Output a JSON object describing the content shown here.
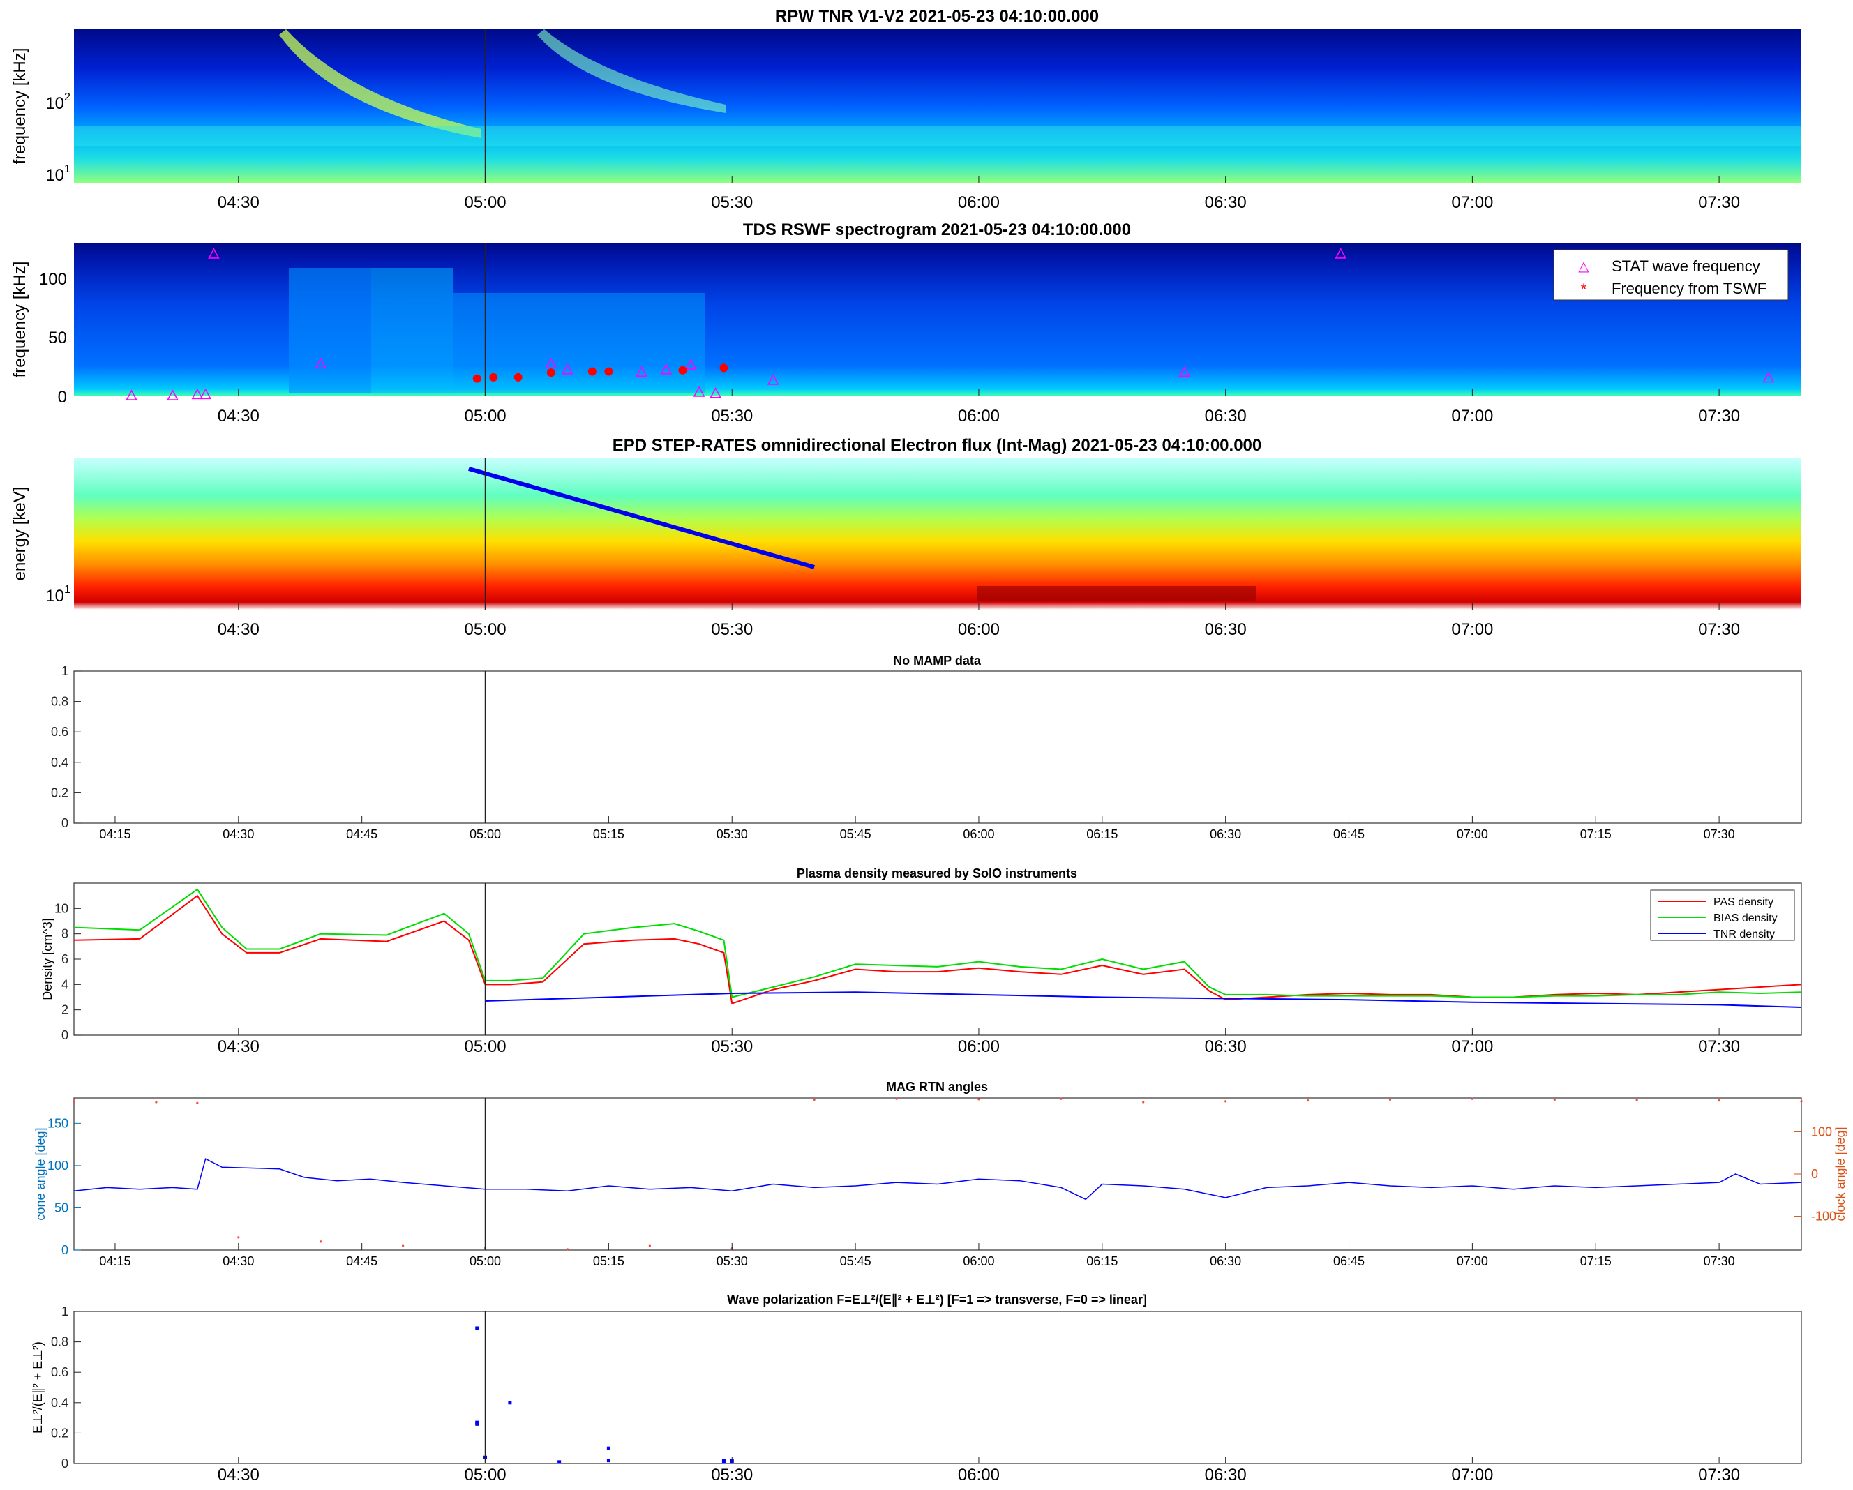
{
  "time_ticks_30": [
    "04:30",
    "05:00",
    "05:30",
    "06:00",
    "06:30",
    "07:00",
    "07:30"
  ],
  "time_ticks_15": [
    "04:15",
    "04:30",
    "04:45",
    "05:00",
    "05:15",
    "05:30",
    "05:45",
    "06:00",
    "06:15",
    "06:30",
    "06:45",
    "07:00",
    "07:15",
    "07:30"
  ],
  "event_time": "05:00",
  "chart_data": [
    {
      "type": "heatmap",
      "title": "RPW TNR V1-V2 2021-05-23 04:10:00.000",
      "ylabel": "frequency [kHz]",
      "yscale": "log",
      "yticks": [
        "10^1",
        "10^2"
      ],
      "colormap": "jet",
      "features": [
        "type III radio burst starting ~04:37",
        "type III radio burst starting ~04:52",
        "enhanced emission ~05:00"
      ]
    },
    {
      "type": "heatmap",
      "title": "TDS RSWF spectrogram 2021-05-23 04:10:00.000",
      "ylabel": "frequency [kHz]",
      "ylim": [
        0,
        130
      ],
      "yticks": [
        "0",
        "50",
        "100"
      ],
      "colormap": "jet",
      "legend": [
        "STAT wave frequency",
        "Frequency from TSWF"
      ],
      "legend_position": "top-right",
      "stat_wave_frequency": [
        {
          "x": "04:17",
          "y": 0
        },
        {
          "x": "04:22",
          "y": 0
        },
        {
          "x": "04:25",
          "y": 1
        },
        {
          "x": "04:26",
          "y": 1
        },
        {
          "x": "04:27",
          "y": 120
        },
        {
          "x": "04:40",
          "y": 27
        },
        {
          "x": "05:08",
          "y": 27
        },
        {
          "x": "05:10",
          "y": 22
        },
        {
          "x": "05:19",
          "y": 20
        },
        {
          "x": "05:22",
          "y": 22
        },
        {
          "x": "05:25",
          "y": 26
        },
        {
          "x": "05:26",
          "y": 3
        },
        {
          "x": "05:28",
          "y": 2
        },
        {
          "x": "05:35",
          "y": 13
        },
        {
          "x": "06:25",
          "y": 20
        },
        {
          "x": "06:44",
          "y": 120
        },
        {
          "x": "07:36",
          "y": 15
        }
      ],
      "frequency_from_tswf": [
        {
          "x": "04:59",
          "y": 15
        },
        {
          "x": "05:01",
          "y": 16
        },
        {
          "x": "05:04",
          "y": 16
        },
        {
          "x": "05:08",
          "y": 20
        },
        {
          "x": "05:13",
          "y": 21
        },
        {
          "x": "05:15",
          "y": 21
        },
        {
          "x": "05:24",
          "y": 22
        },
        {
          "x": "05:29",
          "y": 24
        }
      ]
    },
    {
      "type": "heatmap",
      "title": "EPD STEP-RATES omnidirectional Electron flux (Int-Mag) 2021-05-23 04:10:00.000",
      "ylabel": "energy [keV]",
      "yscale": "log",
      "yticks": [
        "10^1"
      ],
      "colormap": "jet",
      "velocity_dispersion_line": {
        "x": [
          "04:58",
          "05:40"
        ],
        "color": "#0000ee"
      }
    },
    {
      "type": "line",
      "title": "No MAMP data",
      "ylim": [
        0,
        1
      ],
      "yticks": [
        "0",
        "0.2",
        "0.4",
        "0.6",
        "0.8",
        "1"
      ],
      "series": []
    },
    {
      "type": "line",
      "title": "Plasma density measured by SolO instruments",
      "ylabel": "Density [cm^3]",
      "ylim": [
        0,
        12
      ],
      "yticks": [
        "0",
        "2",
        "4",
        "6",
        "8",
        "10"
      ],
      "legend_position": "top-right",
      "series": [
        {
          "name": "PAS density",
          "color": "#ff0000",
          "x": [
            "04:10",
            "04:18",
            "04:25",
            "04:28",
            "04:31",
            "04:35",
            "04:40",
            "04:48",
            "04:55",
            "04:58",
            "05:00",
            "05:03",
            "05:07",
            "05:12",
            "05:18",
            "05:23",
            "05:26",
            "05:29",
            "05:30",
            "05:35",
            "05:40",
            "05:45",
            "05:50",
            "05:55",
            "06:00",
            "06:05",
            "06:10",
            "06:15",
            "06:20",
            "06:25",
            "06:28",
            "06:30",
            "06:35",
            "06:40",
            "06:45",
            "06:50",
            "06:55",
            "07:00",
            "07:05",
            "07:10",
            "07:15",
            "07:20",
            "07:25",
            "07:30",
            "07:35",
            "07:40"
          ],
          "y": [
            7.5,
            7.6,
            11,
            8,
            6.5,
            6.5,
            7.6,
            7.4,
            9,
            7.5,
            4,
            4,
            4.2,
            7.2,
            7.5,
            7.6,
            7.2,
            6.5,
            2.5,
            3.6,
            4.3,
            5.2,
            5,
            5,
            5.3,
            5,
            4.8,
            5.5,
            4.8,
            5.2,
            3.5,
            2.8,
            3,
            3.2,
            3.3,
            3.2,
            3.2,
            3,
            3,
            3.2,
            3.3,
            3.2,
            3.4,
            3.6,
            3.8,
            4
          ]
        },
        {
          "name": "BIAS density",
          "color": "#00dd00",
          "x": [
            "04:10",
            "04:18",
            "04:25",
            "04:28",
            "04:31",
            "04:35",
            "04:40",
            "04:48",
            "04:55",
            "04:58",
            "05:00",
            "05:03",
            "05:07",
            "05:12",
            "05:18",
            "05:23",
            "05:26",
            "05:29",
            "05:30",
            "05:35",
            "05:40",
            "05:45",
            "05:50",
            "05:55",
            "06:00",
            "06:05",
            "06:10",
            "06:15",
            "06:20",
            "06:25",
            "06:28",
            "06:30",
            "06:35",
            "06:40",
            "06:45",
            "06:50",
            "06:55",
            "07:00",
            "07:05",
            "07:10",
            "07:15",
            "07:20",
            "07:25",
            "07:30",
            "07:35",
            "07:40"
          ],
          "y": [
            8.5,
            8.3,
            11.5,
            8.5,
            6.8,
            6.8,
            8,
            7.9,
            9.6,
            8,
            4.3,
            4.3,
            4.5,
            8,
            8.5,
            8.8,
            8.2,
            7.5,
            3,
            3.8,
            4.6,
            5.6,
            5.5,
            5.4,
            5.8,
            5.4,
            5.2,
            6,
            5.2,
            5.8,
            3.8,
            3.2,
            3.2,
            3.1,
            3.1,
            3.1,
            3.1,
            3,
            3,
            3.1,
            3.1,
            3.2,
            3.2,
            3.4,
            3.3,
            3.4
          ]
        },
        {
          "name": "TNR density",
          "color": "#0000ff",
          "x": [
            "05:00",
            "05:30",
            "05:45",
            "06:15",
            "06:30",
            "06:45",
            "07:00",
            "07:15",
            "07:30",
            "07:40"
          ],
          "y": [
            2.7,
            3.3,
            3.4,
            3.0,
            2.9,
            2.8,
            2.6,
            2.5,
            2.4,
            2.2
          ]
        }
      ]
    },
    {
      "type": "line",
      "title": "MAG RTN angles",
      "ylabel": "cone angle [deg]",
      "ylabel_right": "clock angle [deg]",
      "ylim": [
        0,
        180
      ],
      "ylim_right": [
        -180,
        180
      ],
      "yticks": [
        "0",
        "50",
        "100",
        "150"
      ],
      "yticks_right": [
        "-100",
        "0",
        "100"
      ],
      "axis_color_left": "#0072bd",
      "axis_color_right": "#d95319",
      "series": [
        {
          "name": "cone",
          "color": "#0000ff",
          "x": [
            "04:10",
            "04:14",
            "04:18",
            "04:22",
            "04:25",
            "04:26",
            "04:28",
            "04:35",
            "04:38",
            "04:42",
            "04:46",
            "04:50",
            "04:55",
            "05:00",
            "05:05",
            "05:10",
            "05:15",
            "05:20",
            "05:25",
            "05:30",
            "05:35",
            "05:40",
            "05:45",
            "05:50",
            "05:55",
            "06:00",
            "06:05",
            "06:10",
            "06:13",
            "06:15",
            "06:20",
            "06:25",
            "06:30",
            "06:35",
            "06:40",
            "06:45",
            "06:50",
            "06:55",
            "07:00",
            "07:05",
            "07:10",
            "07:15",
            "07:20",
            "07:25",
            "07:30",
            "07:32",
            "07:35",
            "07:40"
          ],
          "y": [
            70,
            74,
            72,
            74,
            72,
            108,
            98,
            96,
            86,
            82,
            84,
            80,
            76,
            72,
            72,
            70,
            76,
            72,
            74,
            70,
            78,
            74,
            76,
            80,
            78,
            84,
            82,
            74,
            60,
            78,
            76,
            72,
            62,
            74,
            76,
            80,
            76,
            74,
            76,
            72,
            76,
            74,
            76,
            78,
            80,
            90,
            78,
            80
          ]
        },
        {
          "name": "clock",
          "color": "#ff4444",
          "x": [
            "04:10",
            "04:20",
            "04:25",
            "04:30",
            "04:40",
            "04:50",
            "05:00",
            "05:10",
            "05:20",
            "05:30",
            "05:40",
            "05:50",
            "06:00",
            "06:10",
            "06:20",
            "06:30",
            "06:40",
            "06:50",
            "07:00",
            "07:10",
            "07:20",
            "07:30",
            "07:40"
          ],
          "y": [
            172,
            170,
            168,
            -150,
            -160,
            -170,
            -175,
            -178,
            -170,
            -176,
            176,
            178,
            177,
            178,
            170,
            172,
            174,
            176,
            178,
            176,
            175,
            174,
            172
          ]
        }
      ]
    },
    {
      "type": "scatter",
      "title": "Wave polarization  F=E⊥²/(E∥² + E⊥²) [F=1 => transverse, F=0 => linear]",
      "ylabel": "E⊥²/(E∥² + E⊥²)",
      "ylim": [
        0,
        1
      ],
      "yticks": [
        "0",
        "0.2",
        "0.4",
        "0.6",
        "0.8",
        "1"
      ],
      "color": "#0000ff",
      "points": [
        {
          "x": "04:59",
          "y": 0.27
        },
        {
          "x": "04:59",
          "y": 0.26
        },
        {
          "x": "04:59",
          "y": 0.89
        },
        {
          "x": "05:00",
          "y": 0.04
        },
        {
          "x": "05:03",
          "y": 0.4
        },
        {
          "x": "05:09",
          "y": 0.01
        },
        {
          "x": "05:15",
          "y": 0.1
        },
        {
          "x": "05:15",
          "y": 0.02
        },
        {
          "x": "05:29",
          "y": 0.02
        },
        {
          "x": "05:29",
          "y": 0.01
        },
        {
          "x": "05:30",
          "y": 0.01
        },
        {
          "x": "05:30",
          "y": 0.02
        }
      ]
    }
  ]
}
